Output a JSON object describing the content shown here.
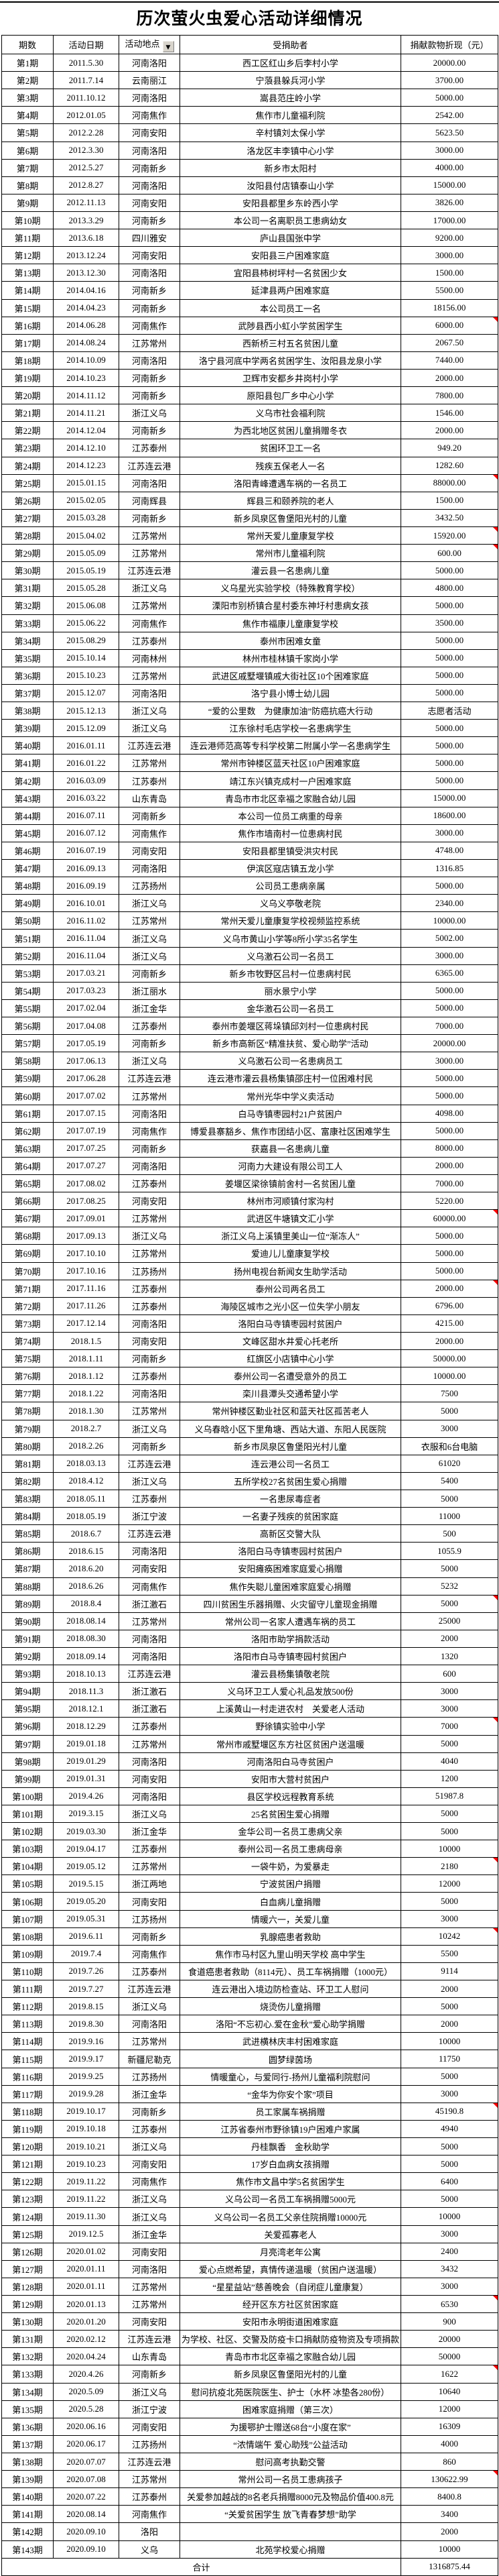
{
  "title": "历次萤火虫爱心活动详细情况",
  "columns": {
    "period": "期数",
    "date": "活动日期",
    "region": "活动地点",
    "recipient": "受捐助者",
    "value": "捐献款物折现（元）"
  },
  "filter": {
    "icon": "chevron-down",
    "glyph": "▼"
  },
  "colors": {
    "border": "#000000",
    "note_marker": "#ff0000",
    "filter_button": "#d8d4cc"
  },
  "total": {
    "label": "合计",
    "value": "1316875.44"
  },
  "rows": [
    {
      "p": "第1期",
      "d": "2011.5.30",
      "r": "河南洛阳",
      "t": "西工区红山乡后李村小学",
      "v": "20000.00"
    },
    {
      "p": "第2期",
      "d": "2011.7.14",
      "r": "云南丽江",
      "t": "宁蒗县躲兵河小学",
      "v": "3700.00"
    },
    {
      "p": "第3期",
      "d": "2011.10.12",
      "r": "河南洛阳",
      "t": "嵩县范庄岭小学",
      "v": "5000.00"
    },
    {
      "p": "第4期",
      "d": "2012.01.05",
      "r": "河南焦作",
      "t": "焦作市儿童福利院",
      "v": "2542.00"
    },
    {
      "p": "第5期",
      "d": "2012.2.28",
      "r": "河南安阳",
      "t": "辛村镇刘太保小学",
      "v": "5623.50"
    },
    {
      "p": "第6期",
      "d": "2012.3.30",
      "r": "河南洛阳",
      "t": "洛龙区丰李镇中心小学",
      "v": "3000.00"
    },
    {
      "p": "第7期",
      "d": "2012.5.27",
      "r": "河南新乡",
      "t": "新乡市太阳村",
      "v": "4000.00"
    },
    {
      "p": "第8期",
      "d": "2012.8.27",
      "r": "河南洛阳",
      "t": "汝阳县付店镇泰山小学",
      "v": "15000.00"
    },
    {
      "p": "第9期",
      "d": "2012.11.13",
      "r": "河南安阳",
      "t": "安阳县都里乡东岭西小学",
      "v": "3826.00"
    },
    {
      "p": "第10期",
      "d": "2013.3.29",
      "r": "河南新乡",
      "t": "本公司一名离职员工患病幼女",
      "v": "17000.00"
    },
    {
      "p": "第11期",
      "d": "2013.6.18",
      "r": "四川雅安",
      "t": "庐山县国张中学",
      "v": "9200.00"
    },
    {
      "p": "第12期",
      "d": "2013.12.24",
      "r": "河南安阳",
      "t": "安阳县三户困难家庭",
      "v": "3000.00"
    },
    {
      "p": "第13期",
      "d": "2013.12.30",
      "r": "河南洛阳",
      "t": "宜阳县柿树坪村一名贫困少女",
      "v": "1500.00"
    },
    {
      "p": "第14期",
      "d": "2014.04.16",
      "r": "河南新乡",
      "t": "延津县两户困难家庭",
      "v": "5500.00"
    },
    {
      "p": "第15期",
      "d": "2014.04.23",
      "r": "河南新乡",
      "t": "本公司员工一名",
      "v": "18156.00"
    },
    {
      "p": "第16期",
      "d": "2014.06.28",
      "r": "河南焦作",
      "t": "武陟县西小虹小学贫困学生",
      "v": "6000.00",
      "note": true
    },
    {
      "p": "第17期",
      "d": "2014.08.24",
      "r": "江苏常州",
      "t": "西新桥三村五名贫困儿童",
      "v": "2067.50"
    },
    {
      "p": "第18期",
      "d": "2014.10.09",
      "r": "河南洛阳",
      "t": "洛宁县河底中学两名贫困学生、汝阳县龙泉小学",
      "v": "7440.00"
    },
    {
      "p": "第19期",
      "d": "2014.10.23",
      "r": "河南新乡",
      "t": "卫辉市安都乡井岗村小学",
      "v": "2000.00"
    },
    {
      "p": "第20期",
      "d": "2014.11.12",
      "r": "河南新乡",
      "t": "原阳县包厂乡中心小学",
      "v": "7800.00"
    },
    {
      "p": "第21期",
      "d": "2014.11.21",
      "r": "浙江义乌",
      "t": "义乌市社会福利院",
      "v": "1546.00"
    },
    {
      "p": "第22期",
      "d": "2014.12.04",
      "r": "河南新乡",
      "t": "为西北地区贫困儿童捐赠冬衣",
      "v": "2000.00"
    },
    {
      "p": "第23期",
      "d": "2014.12.10",
      "r": "江苏泰州",
      "t": "贫困环卫工一名",
      "v": "949.20"
    },
    {
      "p": "第24期",
      "d": "2014.12.23",
      "r": "江苏连云港",
      "t": "残疾五保老人一名",
      "v": "1282.60"
    },
    {
      "p": "第25期",
      "d": "2015.01.15",
      "r": "河南洛阳",
      "t": "洛阳青峰遭遇车祸的一名员工",
      "v": "88000.00",
      "note": true
    },
    {
      "p": "第26期",
      "d": "2015.02.05",
      "r": "河南辉县",
      "t": "辉县三和颐养院的老人",
      "v": "1500.00"
    },
    {
      "p": "第27期",
      "d": "2015.03.28",
      "r": "河南新乡",
      "t": "新乡凤泉区鲁堡阳光村的儿童",
      "v": "3432.50"
    },
    {
      "p": "第28期",
      "d": "2015.04.02",
      "r": "江苏常州",
      "t": "常州天爱儿童康复学校",
      "v": "15920.00",
      "note": true
    },
    {
      "p": "第29期",
      "d": "2015.05.09",
      "r": "江苏常州",
      "t": "常州市儿童福利院",
      "v": "600.00",
      "note": true
    },
    {
      "p": "第30期",
      "d": "2015.05.19",
      "r": "江苏连云港",
      "t": "灌云县一名患病儿童",
      "v": "5000.00"
    },
    {
      "p": "第31期",
      "d": "2015.05.28",
      "r": "浙江义乌",
      "t": "义乌星光实验学校（特殊教育学校）",
      "v": "4800.00"
    },
    {
      "p": "第32期",
      "d": "2015.06.08",
      "r": "江苏常州",
      "t": "溧阳市别桥镇合星村委东神圩村患病女孩",
      "v": "5000.00"
    },
    {
      "p": "第33期",
      "d": "2015.06.22",
      "r": "河南焦作",
      "t": "焦作市福康儿童康复学校",
      "v": "3500.00"
    },
    {
      "p": "第34期",
      "d": "2015.08.29",
      "r": "江苏泰州",
      "t": "泰州市困难女童",
      "v": "5000.00"
    },
    {
      "p": "第35期",
      "d": "2015.10.14",
      "r": "河南林州",
      "t": "林州市桂林镇千家岗小学",
      "v": "5000.00"
    },
    {
      "p": "第36期",
      "d": "2015.10.23",
      "r": "江苏常州",
      "t": "武进区戚墅堰镇戚大街社区10个困难家庭",
      "v": "5000.00"
    },
    {
      "p": "第37期",
      "d": "2015.12.07",
      "r": "河南洛阳",
      "t": "洛宁县小博士幼儿园",
      "v": "5000.00"
    },
    {
      "p": "第38期",
      "d": "2015.12.13",
      "r": "浙江义乌",
      "t": "“爱的公里数　为健康加油”防癌抗癌大行动",
      "v": "志愿者活动"
    },
    {
      "p": "第39期",
      "d": "2015.12.09",
      "r": "浙江义乌",
      "t": "江东徐村毛店学校一名患病学生",
      "v": "5000.00"
    },
    {
      "p": "第40期",
      "d": "2016.01.11",
      "r": "江苏连云港",
      "t": "连云港师范高等专科学校第二附属小学一名患病学生",
      "v": "5000.00"
    },
    {
      "p": "第41期",
      "d": "2016.01.22",
      "r": "江苏常州",
      "t": "常州市钟楼区蓝天社区10户困难家庭",
      "v": "5000.00"
    },
    {
      "p": "第42期",
      "d": "2016.03.09",
      "r": "江苏泰州",
      "t": "靖江东兴镇克成村一户困难家庭",
      "v": "5000.00"
    },
    {
      "p": "第43期",
      "d": "2016.03.22",
      "r": "山东青岛",
      "t": "青岛市市北区幸福之家融合幼儿园",
      "v": "15000.00"
    },
    {
      "p": "第44期",
      "d": "2016.07.11",
      "r": "河南新乡",
      "t": "本公司一位员工病重的母亲",
      "v": "18600.00"
    },
    {
      "p": "第45期",
      "d": "2016.07.12",
      "r": "河南焦作",
      "t": "焦作市墙南村一位患病村民",
      "v": "3000.00"
    },
    {
      "p": "第46期",
      "d": "2016.07.19",
      "r": "河南安阳",
      "t": "安阳县都里镇受洪灾村民",
      "v": "4748.00"
    },
    {
      "p": "第47期",
      "d": "2016.09.13",
      "r": "河南洛阳",
      "t": "伊滨区寇店镇五龙小学",
      "v": "1316.85"
    },
    {
      "p": "第48期",
      "d": "2016.09.19",
      "r": "江苏扬州",
      "t": "公司员工患病亲属",
      "v": "5000.00"
    },
    {
      "p": "第49期",
      "d": "2016.10.01",
      "r": "浙江义乌",
      "t": "义乌义亭敬老院",
      "v": "2340.00"
    },
    {
      "p": "第50期",
      "d": "2016.11.02",
      "r": "江苏常州",
      "t": "常州天爱儿童康复学校视频监控系统",
      "v": "10000.00"
    },
    {
      "p": "第51期",
      "d": "2016.11.04",
      "r": "浙江义乌",
      "t": "义乌市黄山小学等8所小学35名学生",
      "v": "5002.00"
    },
    {
      "p": "第52期",
      "d": "2016.11.04",
      "r": "浙江义乌",
      "t": "义乌激石公司一名员工",
      "v": "3000.00"
    },
    {
      "p": "第53期",
      "d": "2017.03.21",
      "r": "河南新乡",
      "t": "新乡市牧野区吕村一位患病村民",
      "v": "6365.00"
    },
    {
      "p": "第54期",
      "d": "2017.03.23",
      "r": "浙江丽水",
      "t": "丽水景宁小学",
      "v": "5000.00"
    },
    {
      "p": "第55期",
      "d": "2017.02.04",
      "r": "浙江金华",
      "t": "金华激石公司一名员工",
      "v": "5000.00"
    },
    {
      "p": "第56期",
      "d": "2017.04.08",
      "r": "江苏泰州",
      "t": "泰州市姜堰区蒋垛镇邱刘村一位患病村民",
      "v": "7000.00"
    },
    {
      "p": "第57期",
      "d": "2017.05.19",
      "r": "河南新乡",
      "t": "新乡市高新区“精准扶贫、爱心助学”活动",
      "v": "20000.00"
    },
    {
      "p": "第58期",
      "d": "2017.06.13",
      "r": "浙江义乌",
      "t": "义乌激石公司一名患病员工",
      "v": "3000.00"
    },
    {
      "p": "第59期",
      "d": "2017.06.28",
      "r": "江苏连云港",
      "t": "连云港市灌云县杨集镇邵庄村一位困难村民",
      "v": "5000.00"
    },
    {
      "p": "第60期",
      "d": "2017.07.02",
      "r": "江苏常州",
      "t": "常州光华中学义卖活动",
      "v": "5000.00"
    },
    {
      "p": "第61期",
      "d": "2017.07.15",
      "r": "河南洛阳",
      "t": "白马寺镇枣园村21户贫困户",
      "v": "4098.00"
    },
    {
      "p": "第62期",
      "d": "2017.07.19",
      "r": "河南焦作",
      "t": "博爱县寨豁乡、焦作市团结小区、富康社区困难学生",
      "v": "5000.00"
    },
    {
      "p": "第63期",
      "d": "2017.07.25",
      "r": "河南新乡",
      "t": "获嘉县一名患病儿童",
      "v": "8000.00"
    },
    {
      "p": "第64期",
      "d": "2017.07.27",
      "r": "河南洛阳",
      "t": "河南力大建设有限公司工人",
      "v": "2000.00"
    },
    {
      "p": "第65期",
      "d": "2017.08.02",
      "r": "江苏泰州",
      "t": "姜堰区梁徐镇前舍村一名贫困儿童",
      "v": "7000.00"
    },
    {
      "p": "第66期",
      "d": "2017.08.25",
      "r": "河南安阳",
      "t": "林州市河顺镇付家沟村",
      "v": "5220.00"
    },
    {
      "p": "第67期",
      "d": "2017.09.01",
      "r": "江苏常州",
      "t": "武进区牛塘镇文汇小学",
      "v": "60000.00",
      "note": true
    },
    {
      "p": "第68期",
      "d": "2017.09.13",
      "r": "浙江义乌",
      "t": "浙江义乌上溪镇里美山一位“渐冻人”",
      "v": "5000.00"
    },
    {
      "p": "第69期",
      "d": "2017.10.10",
      "r": "江苏常州",
      "t": "爱迪儿儿童康复学校",
      "v": "5000.00"
    },
    {
      "p": "第70期",
      "d": "2017.10.16",
      "r": "江苏扬州",
      "t": "扬州电视台新闻女生助学活动",
      "v": "5000.00"
    },
    {
      "p": "第71期",
      "d": "2017.11.16",
      "r": "江苏泰州",
      "t": "泰州公司两名员工",
      "v": "2000.00",
      "note": true
    },
    {
      "p": "第72期",
      "d": "2017.11.26",
      "r": "江苏泰州",
      "t": "海陵区城市之光小区一位失学小朋友",
      "v": "6796.00"
    },
    {
      "p": "第73期",
      "d": "2017.12.14",
      "r": "河南洛阳",
      "t": "洛阳白马寺镇枣园村贫困户",
      "v": "4215.00"
    },
    {
      "p": "第74期",
      "d": "2018.1.5",
      "r": "河南安阳",
      "t": "文峰区甜水井爱心托老所",
      "v": "2000.00"
    },
    {
      "p": "第75期",
      "d": "2018.1.11",
      "r": "河南新乡",
      "t": "红旗区小店镇中心小学",
      "v": "50000.00"
    },
    {
      "p": "第76期",
      "d": "2018.1.12",
      "r": "江苏泰州",
      "t": "泰州公司一名遭受意外的员工",
      "v": "10000.00"
    },
    {
      "p": "第77期",
      "d": "2018.1.22",
      "r": "河南洛阳",
      "t": "栾川县潭头交通希望小学",
      "v": "7500"
    },
    {
      "p": "第78期",
      "d": "2018.1.30",
      "r": "江苏常州",
      "t": "常州钟楼区勤业社区和蓝天社区孤苦老人",
      "v": "5000"
    },
    {
      "p": "第79期",
      "d": "2018.2.7",
      "r": "浙江义乌",
      "t": "义乌春晗小区下里角塘、西站大道、东阳人民医院",
      "v": "3000"
    },
    {
      "p": "第80期",
      "d": "2018.2.26",
      "r": "河南新乡",
      "t": "新乡市凤泉区鲁堡阳光村儿童",
      "v": "衣服和6台电脑"
    },
    {
      "p": "第81期",
      "d": "2018.03.13",
      "r": "江苏连云港",
      "t": "连云港公司一名员工",
      "v": "61020"
    },
    {
      "p": "第82期",
      "d": "2018.4.12",
      "r": "浙江义乌",
      "t": "五所学校27名贫困生爱心捐赠",
      "v": "5400"
    },
    {
      "p": "第83期",
      "d": "2018.05.11",
      "r": "江苏泰州",
      "t": "一名患尿毒症者",
      "v": "5000"
    },
    {
      "p": "第84期",
      "d": "2018.05.19",
      "r": "浙江宁波",
      "t": "一名妻子残疾的贫困家庭",
      "v": "11000"
    },
    {
      "p": "第85期",
      "d": "2018.6.7",
      "r": "江苏连云港",
      "t": "高新区交警大队",
      "v": "500"
    },
    {
      "p": "第86期",
      "d": "2018.6.15",
      "r": "河南洛阳",
      "t": "洛阳白马寺镇枣园村贫困户",
      "v": "1055.9"
    },
    {
      "p": "第87期",
      "d": "2018.6.20",
      "r": "河南安阳",
      "t": "安阳瘫痪困难家庭爱心捐赠",
      "v": "5000"
    },
    {
      "p": "第88期",
      "d": "2018.6.26",
      "r": "河南焦作",
      "t": "焦作失聪儿童困难家庭爱心捐赠",
      "v": "5232"
    },
    {
      "p": "第89期",
      "d": "2018.8.4",
      "r": "浙江激石",
      "t": "四川贫困生乐器捐赠、火灾留守儿童现金捐赠",
      "v": "5000",
      "note": true
    },
    {
      "p": "第90期",
      "d": "2018.08.14",
      "r": "江苏常州",
      "t": "常州公司一名家人遭遇车祸的员工",
      "v": "25000"
    },
    {
      "p": "第91期",
      "d": "2018.08.30",
      "r": "河南洛阳",
      "t": "洛阳市助学捐款活动",
      "v": "2000"
    },
    {
      "p": "第92期",
      "d": "2018.09.14",
      "r": "河南洛阳",
      "t": "洛阳市白马寺镇枣园村贫困户",
      "v": "1320"
    },
    {
      "p": "第93期",
      "d": "2018.10.13",
      "r": "江苏连云港",
      "t": "灌云县杨集镇敬老院",
      "v": "600"
    },
    {
      "p": "第94期",
      "d": "2018.11.3",
      "r": "浙江激石",
      "t": "义乌环卫工人爱心礼品发放500份",
      "v": "3000"
    },
    {
      "p": "第95期",
      "d": "2018.12.1",
      "r": "浙江激石",
      "t": "上溪黄山一村走进农村　关爱老人活动",
      "v": "3000"
    },
    {
      "p": "第96期",
      "d": "2018.12.29",
      "r": "江苏泰州",
      "t": "野徐镇实验中小学",
      "v": "7000",
      "note": true
    },
    {
      "p": "第97期",
      "d": "2019.01.18",
      "r": "江苏常州",
      "t": "常州市戚墅堰区东方社区贫困户送温暖",
      "v": "5000"
    },
    {
      "p": "第98期",
      "d": "2019.01.29",
      "r": "河南洛阳",
      "t": "河南洛阳白马寺贫困户",
      "v": "4040"
    },
    {
      "p": "第99期",
      "d": "2019.01.31",
      "r": "河南安阳",
      "t": "安阳市大营村贫困户",
      "v": "1200"
    },
    {
      "p": "第100期",
      "d": "2019.4.26",
      "r": "河南洛阳",
      "t": "县区学校远程教育系统",
      "v": "51987.8"
    },
    {
      "p": "第101期",
      "d": "2019.3.15",
      "r": "浙江义乌",
      "t": "25名贫困生爱心捐赠",
      "v": "5000"
    },
    {
      "p": "第102期",
      "d": "2019.03.30",
      "r": "浙江金华",
      "t": "金华公司一名员工患病父亲",
      "v": "5000"
    },
    {
      "p": "第103期",
      "d": "2019.04.17",
      "r": "江苏泰州",
      "t": "泰州公司一名员工患病母亲",
      "v": "10000"
    },
    {
      "p": "第104期",
      "d": "2019.05.12",
      "r": "江苏常州",
      "t": "一袋牛奶，为爱暴走",
      "v": "2180",
      "note": true
    },
    {
      "p": "第105期",
      "d": "2019.5.15",
      "r": "浙江两地",
      "t": "宁波贫困户捐赠",
      "v": "12000"
    },
    {
      "p": "第106期",
      "d": "2019.05.20",
      "r": "河南安阳",
      "t": "白血病儿童捐赠",
      "v": "5000"
    },
    {
      "p": "第107期",
      "d": "2019.05.31",
      "r": "江苏扬州",
      "t": "情暖六一，关爱儿童",
      "v": "3000"
    },
    {
      "p": "第108期",
      "d": "2019.6.11",
      "r": "河南新乡",
      "t": "乳腺癌患者救助",
      "v": "10242",
      "note": true
    },
    {
      "p": "第109期",
      "d": "2019.7.4",
      "r": "河南焦作",
      "t": "焦作市马村区九里山明天学校 高中学生",
      "v": "5500"
    },
    {
      "p": "第110期",
      "d": "2019.7.26",
      "r": "江苏泰州",
      "t": "食道癌患者救助（8114元）、员工车祸捐赠（1000元）",
      "v": "9114"
    },
    {
      "p": "第111期",
      "d": "2019.7.27",
      "r": "江苏连云港",
      "t": "连云港出入境边防检查站、环卫工人慰问",
      "v": "2000"
    },
    {
      "p": "第112期",
      "d": "2019.8.15",
      "r": "浙江义乌",
      "t": "烧烫伤儿童捐赠",
      "v": "5000"
    },
    {
      "p": "第113期",
      "d": "2019.8.30",
      "r": "河南洛阳",
      "t": "洛阳“不忘初心.爱在金秋”爱心助学捐赠",
      "v": "2000"
    },
    {
      "p": "第114期",
      "d": "2019.9.16",
      "r": "江苏常州",
      "t": "武进横林庆丰村困难家庭",
      "v": "10000"
    },
    {
      "p": "第115期",
      "d": "2019.9.17",
      "r": "新疆尼勒克",
      "t": "圆梦绿茵场",
      "v": "11750"
    },
    {
      "p": "第116期",
      "d": "2019.9.25",
      "r": "江苏扬州",
      "t": "情暖童心，与爱同行-扬州儿童福利院慰问",
      "v": "5000"
    },
    {
      "p": "第117期",
      "d": "2019.9.28",
      "r": "浙江金华",
      "t": "“金华为你安个家”项目",
      "v": "3000"
    },
    {
      "p": "第118期",
      "d": "2019.10.17",
      "r": "河南新乡",
      "t": "员工家属车祸捐赠",
      "v": "45190.8",
      "note": true
    },
    {
      "p": "第119期",
      "d": "2019.10.18",
      "r": "江苏泰州",
      "t": "江苏省泰州市野徐镇19户困难户家属",
      "v": "4940"
    },
    {
      "p": "第120期",
      "d": "2019.10.21",
      "r": "浙江义乌",
      "t": "丹桂飘香　金秋助学",
      "v": "5000"
    },
    {
      "p": "第121期",
      "d": "2019.10.23",
      "r": "河南安阳",
      "t": "17岁白血病女孩捐赠",
      "v": "5000"
    },
    {
      "p": "第122期",
      "d": "2019.11.22",
      "r": "河南焦作",
      "t": "焦作市文昌中学5名贫困学生",
      "v": "6400"
    },
    {
      "p": "第123期",
      "d": "2019.11.22",
      "r": "浙江义乌",
      "t": "义乌公司一名员工车祸捐赠5000元",
      "v": "5000"
    },
    {
      "p": "第124期",
      "d": "2019.11.30",
      "r": "浙江义乌",
      "t": "义乌公司一名员工父亲住院捐赠10000元",
      "v": "10000"
    },
    {
      "p": "第125期",
      "d": "2019.12.5",
      "r": "浙江金华",
      "t": "关爱孤寡老人",
      "v": "3000"
    },
    {
      "p": "第126期",
      "d": "2020.01.02",
      "r": "河南安阳",
      "t": "月亮湾老年公寓",
      "v": "2400"
    },
    {
      "p": "第127期",
      "d": "2020.01.11",
      "r": "河南洛阳",
      "t": "爱心点燃希望，真情传递温暖（贫困户送温暖）",
      "v": "3432"
    },
    {
      "p": "第128期",
      "d": "2020.01.11",
      "r": "江苏常州",
      "t": "“星星益站”慈善晚会（自闭症儿童康复）",
      "v": "3000"
    },
    {
      "p": "第129期",
      "d": "2020.01.13",
      "r": "江苏常州",
      "t": "经开区东方社区贫困家庭",
      "v": "6530",
      "note": true
    },
    {
      "p": "第130期",
      "d": "2020.01.20",
      "r": "河南安阳",
      "t": "安阳市永明街道困难家庭",
      "v": "900"
    },
    {
      "p": "第131期",
      "d": "2020.02.12",
      "r": "江苏连云港",
      "t": "为学校、社区、交警及防疫卡口捐献防疫物资及专项捐款",
      "v": "20000"
    },
    {
      "p": "第132期",
      "d": "2020.04.24",
      "r": "山东青岛",
      "t": "青岛市市北区幸福之家融合幼儿园",
      "v": "50000"
    },
    {
      "p": "第133期",
      "d": "2020.4.26",
      "r": "河南新乡",
      "t": "新乡凤泉区鲁堡阳光村的儿童",
      "v": "1622",
      "note": true
    },
    {
      "p": "第134期",
      "d": "2020.5.09",
      "r": "浙江义乌",
      "t": "慰问抗疫北苑医院医生、护士（水杯 冰垫各280份）",
      "v": "10640"
    },
    {
      "p": "第135期",
      "d": "2020.5.28",
      "r": "浙江宁波",
      "t": "困难家庭捐赠（第三次）",
      "v": "12000"
    },
    {
      "p": "第136期",
      "d": "2020.06.16",
      "r": "河南安阳",
      "t": "为援鄂护士赠送68台“小度在家”",
      "v": "16309"
    },
    {
      "p": "第137期",
      "d": "2020.06.17",
      "r": "江苏扬州",
      "t": "“浓情端午 爱心助残”公益活动",
      "v": "4000"
    },
    {
      "p": "第138期",
      "d": "2020.07.07",
      "r": "江苏连云港",
      "t": "慰问高考执勤交警",
      "v": "860"
    },
    {
      "p": "第139期",
      "d": "2020.07.08",
      "r": "江苏常州",
      "t": "常州公司一名员工患病孩子",
      "v": "130622.99",
      "note": true
    },
    {
      "p": "第140期",
      "d": "2020.07.22",
      "r": "江苏泰州",
      "t": "关爱参加越战的8名老兵捐赠8000元及物品价值400.8元",
      "v": "8400.8"
    },
    {
      "p": "第141期",
      "d": "2020.08.14",
      "r": "河南焦作",
      "t": "“关爱贫困学生 放飞青春梦想”助学",
      "v": "3400"
    },
    {
      "p": "第142期",
      "d": "2020.09.10",
      "r": "洛阳",
      "t": "",
      "v": "2000"
    },
    {
      "p": "第143期",
      "d": "2020.09.10",
      "r": "义乌",
      "t": "北苑学校爱心捐赠",
      "v": "10000"
    }
  ]
}
